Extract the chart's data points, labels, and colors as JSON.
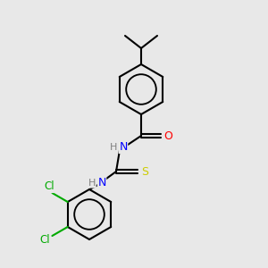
{
  "background_color": "#e8e8e8",
  "bond_color": "#000000",
  "atom_colors": {
    "N": "#0000ff",
    "O": "#ff0000",
    "S": "#cccc00",
    "Cl": "#00aa00",
    "C": "#000000",
    "H": "#808080"
  },
  "figsize": [
    3.0,
    3.0
  ],
  "dpi": 100
}
